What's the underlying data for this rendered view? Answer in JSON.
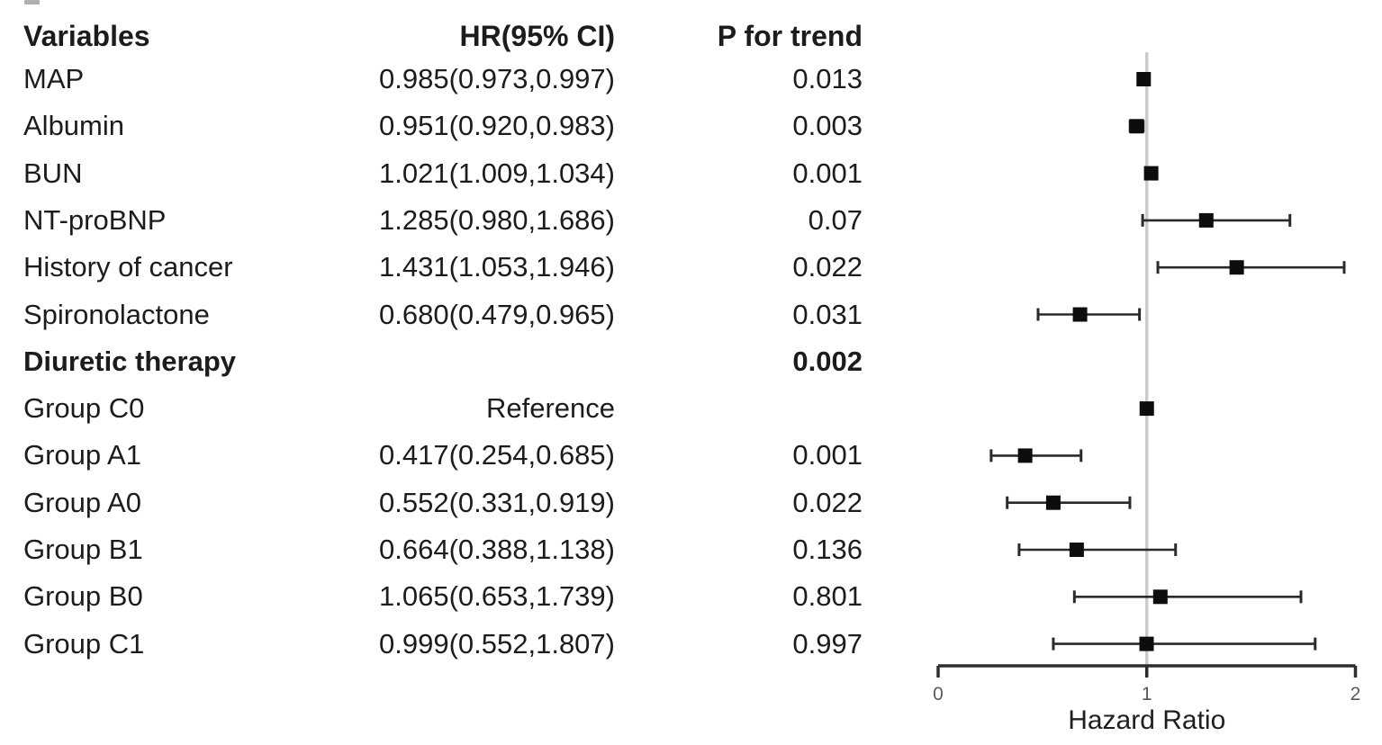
{
  "table": {
    "headers": {
      "variables": "Variables",
      "hr_ci": "HR(95% CI)",
      "p_trend": "P for trend"
    },
    "rows": [
      {
        "label": "MAP",
        "hr_ci": "0.985(0.973,0.997)",
        "p": "0.013",
        "bold": false
      },
      {
        "label": "Albumin",
        "hr_ci": "0.951(0.920,0.983)",
        "p": "0.003",
        "bold": false
      },
      {
        "label": "BUN",
        "hr_ci": "1.021(1.009,1.034)",
        "p": "0.001",
        "bold": false
      },
      {
        "label": "NT-proBNP",
        "hr_ci": "1.285(0.980,1.686)",
        "p": "0.07",
        "bold": false
      },
      {
        "label": "History of cancer",
        "hr_ci": "1.431(1.053,1.946)",
        "p": "0.022",
        "bold": false
      },
      {
        "label": "Spironolactone",
        "hr_ci": "0.680(0.479,0.965)",
        "p": "0.031",
        "bold": false
      },
      {
        "label": "Diuretic therapy",
        "hr_ci": "",
        "p": "0.002",
        "bold": true
      },
      {
        "label": "Group C0",
        "hr_ci": "Reference",
        "p": "",
        "bold": false
      },
      {
        "label": "Group A1",
        "hr_ci": "0.417(0.254,0.685)",
        "p": "0.001",
        "bold": false
      },
      {
        "label": "Group A0",
        "hr_ci": "0.552(0.331,0.919)",
        "p": "0.022",
        "bold": false
      },
      {
        "label": "Group B1",
        "hr_ci": "0.664(0.388,1.138)",
        "p": "0.136",
        "bold": false
      },
      {
        "label": "Group B0",
        "hr_ci": "1.065(0.653,1.739)",
        "p": "0.801",
        "bold": false
      },
      {
        "label": "Group C1",
        "hr_ci": "0.999(0.552,1.807)",
        "p": "0.997",
        "bold": false
      }
    ]
  },
  "chart_data": {
    "type": "forest",
    "xlabel": "Hazard Ratio",
    "xlim": [
      0,
      2
    ],
    "x_ticks": [
      "0",
      "1",
      "2"
    ],
    "reference_line": 1,
    "points": [
      {
        "label": "MAP",
        "hr": 0.985,
        "lo": 0.973,
        "hi": 0.997,
        "reference": false
      },
      {
        "label": "Albumin",
        "hr": 0.951,
        "lo": 0.92,
        "hi": 0.983,
        "reference": false
      },
      {
        "label": "BUN",
        "hr": 1.021,
        "lo": 1.009,
        "hi": 1.034,
        "reference": false
      },
      {
        "label": "NT-proBNP",
        "hr": 1.285,
        "lo": 0.98,
        "hi": 1.686,
        "reference": false
      },
      {
        "label": "History of cancer",
        "hr": 1.431,
        "lo": 1.053,
        "hi": 1.946,
        "reference": false
      },
      {
        "label": "Spironolactone",
        "hr": 0.68,
        "lo": 0.479,
        "hi": 0.965,
        "reference": false
      },
      {
        "label": "Diuretic therapy",
        "hr": null,
        "lo": null,
        "hi": null,
        "reference": false
      },
      {
        "label": "Group C0",
        "hr": 1.0,
        "lo": null,
        "hi": null,
        "reference": true
      },
      {
        "label": "Group A1",
        "hr": 0.417,
        "lo": 0.254,
        "hi": 0.685,
        "reference": false
      },
      {
        "label": "Group A0",
        "hr": 0.552,
        "lo": 0.331,
        "hi": 0.919,
        "reference": false
      },
      {
        "label": "Group B1",
        "hr": 0.664,
        "lo": 0.388,
        "hi": 1.138,
        "reference": false
      },
      {
        "label": "Group B0",
        "hr": 1.065,
        "lo": 0.653,
        "hi": 1.739,
        "reference": false
      },
      {
        "label": "Group C1",
        "hr": 0.999,
        "lo": 0.552,
        "hi": 1.807,
        "reference": false
      }
    ]
  },
  "colors": {
    "marker": "#0d0d0d",
    "ci_line": "#2a2a2a",
    "axis": "#2d2d2d",
    "reference_line": "#cbcbcb",
    "tick_label": "#5a5a5a",
    "axis_label": "#1f1f1f"
  }
}
